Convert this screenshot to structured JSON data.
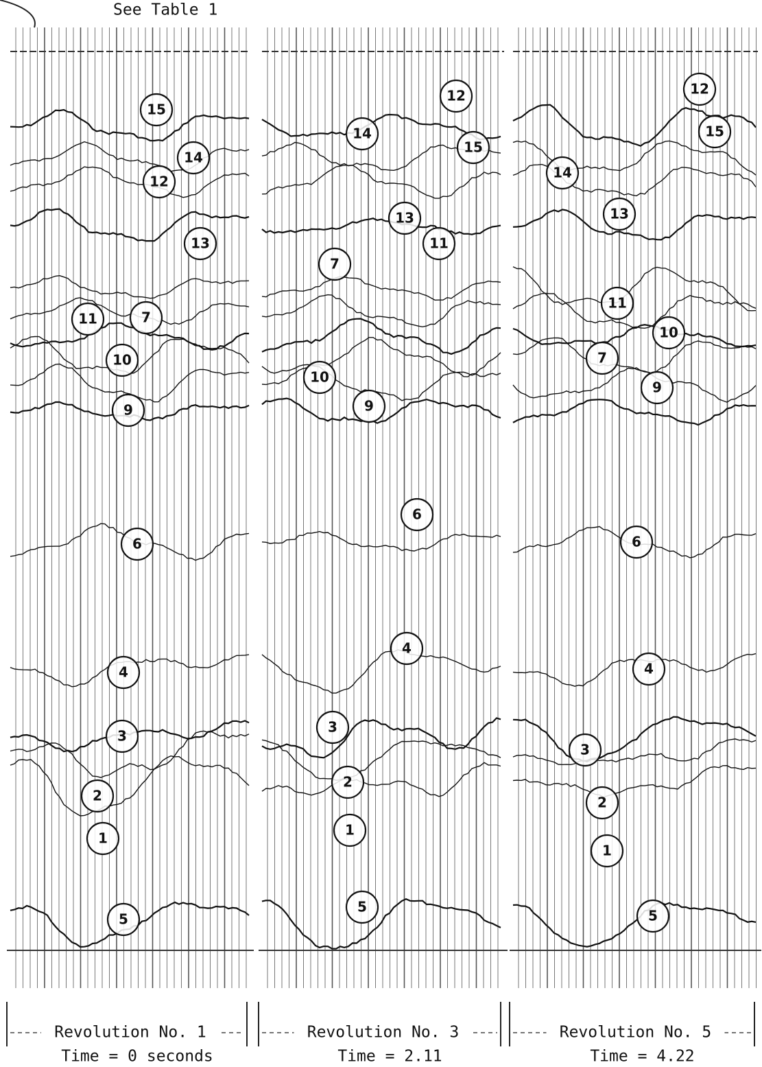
{
  "header": {
    "note": "See Table 1"
  },
  "panels": [
    {
      "label": "Revolution No. 1",
      "time": "Time = 0 seconds",
      "markers": [
        "15",
        "14",
        "12",
        "13",
        "11",
        "7",
        "10",
        "9",
        "6",
        "4",
        "3",
        "2",
        "1",
        "5"
      ]
    },
    {
      "label": "Revolution No. 3",
      "time": "Time = 2.11",
      "markers": [
        "12",
        "14",
        "15",
        "13",
        "11",
        "7",
        "10",
        "9",
        "6",
        "4",
        "3",
        "2",
        "1",
        "5"
      ]
    },
    {
      "label": "Revolution No. 5",
      "time": "Time = 4.22",
      "markers": [
        "12",
        "15",
        "14",
        "13",
        "11",
        "10",
        "7",
        "9",
        "6",
        "4",
        "3",
        "2",
        "1",
        "5"
      ]
    }
  ]
}
